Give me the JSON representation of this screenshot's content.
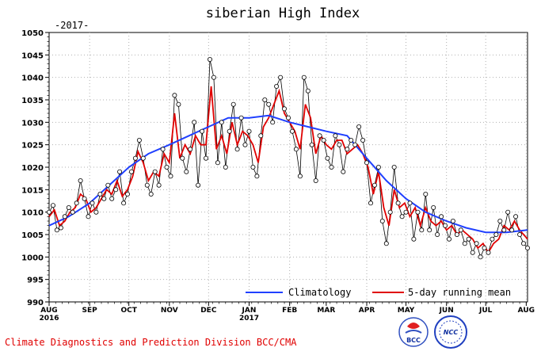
{
  "chart_data": {
    "type": "line",
    "title": "siberian High Index",
    "subtitle": "-2017-",
    "xlabel": "",
    "ylabel": "",
    "ylim": [
      990,
      1050
    ],
    "yticks": [
      990,
      995,
      1000,
      1005,
      1010,
      1015,
      1020,
      1025,
      1030,
      1035,
      1040,
      1045,
      1050
    ],
    "x_range_days": [
      0,
      366
    ],
    "month_ticks": [
      {
        "label": "AUG",
        "year": "2016",
        "day": 0
      },
      {
        "label": "SEP",
        "year": "",
        "day": 31
      },
      {
        "label": "OCT",
        "year": "",
        "day": 61
      },
      {
        "label": "NOV",
        "year": "",
        "day": 92
      },
      {
        "label": "DEC",
        "year": "",
        "day": 122
      },
      {
        "label": "JAN",
        "year": "2017",
        "day": 153
      },
      {
        "label": "FEB",
        "year": "",
        "day": 184
      },
      {
        "label": "MAR",
        "year": "",
        "day": 212
      },
      {
        "label": "APR",
        "year": "",
        "day": 243
      },
      {
        "label": "MAY",
        "year": "",
        "day": 273
      },
      {
        "label": "JUN",
        "year": "",
        "day": 304
      },
      {
        "label": "JUL",
        "year": "",
        "day": 334
      },
      {
        "label": "AUG",
        "year": "",
        "day": 365
      }
    ],
    "grid": true,
    "legend_position": "bottom-right",
    "series": [
      {
        "name": "Climatology",
        "color": "#2040ff",
        "style": "line",
        "points": [
          [
            0,
            1007
          ],
          [
            15,
            1009
          ],
          [
            31,
            1012
          ],
          [
            46,
            1016
          ],
          [
            61,
            1020
          ],
          [
            76,
            1023
          ],
          [
            92,
            1025
          ],
          [
            107,
            1027
          ],
          [
            122,
            1029
          ],
          [
            137,
            1031
          ],
          [
            153,
            1031
          ],
          [
            168,
            1031.5
          ],
          [
            184,
            1030
          ],
          [
            198,
            1029
          ],
          [
            212,
            1028
          ],
          [
            228,
            1027
          ],
          [
            243,
            1022
          ],
          [
            258,
            1017
          ],
          [
            273,
            1013
          ],
          [
            288,
            1010
          ],
          [
            304,
            1008
          ],
          [
            319,
            1006.5
          ],
          [
            334,
            1005.5
          ],
          [
            350,
            1005.5
          ],
          [
            366,
            1006
          ]
        ]
      },
      {
        "name": "5-day running mean",
        "color": "#e00000",
        "style": "line",
        "points": [
          [
            0,
            1009
          ],
          [
            4,
            1010.5
          ],
          [
            8,
            1007
          ],
          [
            12,
            1008
          ],
          [
            16,
            1010
          ],
          [
            20,
            1011
          ],
          [
            24,
            1014
          ],
          [
            28,
            1013
          ],
          [
            32,
            1010
          ],
          [
            36,
            1011
          ],
          [
            40,
            1013
          ],
          [
            44,
            1015
          ],
          [
            48,
            1014
          ],
          [
            52,
            1017
          ],
          [
            56,
            1013.5
          ],
          [
            60,
            1015
          ],
          [
            64,
            1018
          ],
          [
            68,
            1023.5
          ],
          [
            72,
            1021
          ],
          [
            76,
            1017
          ],
          [
            80,
            1019
          ],
          [
            84,
            1018
          ],
          [
            88,
            1023
          ],
          [
            92,
            1021
          ],
          [
            96,
            1032
          ],
          [
            100,
            1022
          ],
          [
            104,
            1025
          ],
          [
            108,
            1023
          ],
          [
            112,
            1027
          ],
          [
            116,
            1025
          ],
          [
            120,
            1025
          ],
          [
            124,
            1038
          ],
          [
            128,
            1024
          ],
          [
            132,
            1027
          ],
          [
            136,
            1023
          ],
          [
            140,
            1030
          ],
          [
            144,
            1025
          ],
          [
            148,
            1028
          ],
          [
            152,
            1027
          ],
          [
            156,
            1025
          ],
          [
            160,
            1021
          ],
          [
            164,
            1029
          ],
          [
            168,
            1031
          ],
          [
            172,
            1034
          ],
          [
            176,
            1037
          ],
          [
            180,
            1032
          ],
          [
            184,
            1030
          ],
          [
            188,
            1028
          ],
          [
            192,
            1024
          ],
          [
            196,
            1034
          ],
          [
            200,
            1031
          ],
          [
            204,
            1023
          ],
          [
            208,
            1027
          ],
          [
            212,
            1025
          ],
          [
            216,
            1024
          ],
          [
            220,
            1026
          ],
          [
            224,
            1026
          ],
          [
            228,
            1023
          ],
          [
            232,
            1024
          ],
          [
            236,
            1025
          ],
          [
            240,
            1023
          ],
          [
            244,
            1020
          ],
          [
            248,
            1014
          ],
          [
            252,
            1019
          ],
          [
            256,
            1011
          ],
          [
            260,
            1007
          ],
          [
            264,
            1015
          ],
          [
            268,
            1011
          ],
          [
            272,
            1012
          ],
          [
            276,
            1009
          ],
          [
            280,
            1011
          ],
          [
            284,
            1007
          ],
          [
            288,
            1011
          ],
          [
            292,
            1008
          ],
          [
            296,
            1007
          ],
          [
            300,
            1008
          ],
          [
            304,
            1006
          ],
          [
            308,
            1007
          ],
          [
            312,
            1005
          ],
          [
            316,
            1006
          ],
          [
            320,
            1005
          ],
          [
            324,
            1004
          ],
          [
            328,
            1002
          ],
          [
            332,
            1003
          ],
          [
            336,
            1001
          ],
          [
            340,
            1003
          ],
          [
            344,
            1004
          ],
          [
            348,
            1007
          ],
          [
            352,
            1006
          ],
          [
            356,
            1008
          ],
          [
            360,
            1006
          ],
          [
            366,
            1004
          ]
        ]
      },
      {
        "name": "",
        "color": "#000000",
        "style": "markers",
        "points": [
          [
            0,
            1010
          ],
          [
            3,
            1011.5
          ],
          [
            6,
            1006
          ],
          [
            9,
            1006.5
          ],
          [
            12,
            1009
          ],
          [
            15,
            1011
          ],
          [
            18,
            1010
          ],
          [
            21,
            1012
          ],
          [
            24,
            1017
          ],
          [
            27,
            1013
          ],
          [
            30,
            1009
          ],
          [
            33,
            1012
          ],
          [
            36,
            1010
          ],
          [
            39,
            1014
          ],
          [
            42,
            1013
          ],
          [
            45,
            1016
          ],
          [
            48,
            1013
          ],
          [
            51,
            1015
          ],
          [
            54,
            1019
          ],
          [
            57,
            1012
          ],
          [
            60,
            1014
          ],
          [
            63,
            1019
          ],
          [
            66,
            1022
          ],
          [
            69,
            1026
          ],
          [
            72,
            1022
          ],
          [
            75,
            1016
          ],
          [
            78,
            1014
          ],
          [
            81,
            1019
          ],
          [
            84,
            1016
          ],
          [
            87,
            1024
          ],
          [
            90,
            1020
          ],
          [
            93,
            1018
          ],
          [
            96,
            1036
          ],
          [
            99,
            1034
          ],
          [
            102,
            1022
          ],
          [
            105,
            1019
          ],
          [
            108,
            1024
          ],
          [
            111,
            1030
          ],
          [
            114,
            1016
          ],
          [
            117,
            1028
          ],
          [
            120,
            1022
          ],
          [
            123,
            1044
          ],
          [
            126,
            1040
          ],
          [
            129,
            1021
          ],
          [
            132,
            1030
          ],
          [
            135,
            1020
          ],
          [
            138,
            1028
          ],
          [
            141,
            1034
          ],
          [
            144,
            1024
          ],
          [
            147,
            1031
          ],
          [
            150,
            1025
          ],
          [
            153,
            1028
          ],
          [
            156,
            1020
          ],
          [
            159,
            1018
          ],
          [
            162,
            1027
          ],
          [
            165,
            1035
          ],
          [
            168,
            1034
          ],
          [
            171,
            1030
          ],
          [
            174,
            1038
          ],
          [
            177,
            1040
          ],
          [
            180,
            1033
          ],
          [
            183,
            1031
          ],
          [
            186,
            1028
          ],
          [
            189,
            1024
          ],
          [
            192,
            1018
          ],
          [
            195,
            1040
          ],
          [
            198,
            1037
          ],
          [
            201,
            1025
          ],
          [
            204,
            1017
          ],
          [
            207,
            1027
          ],
          [
            210,
            1026
          ],
          [
            213,
            1022
          ],
          [
            216,
            1020
          ],
          [
            219,
            1027
          ],
          [
            222,
            1025
          ],
          [
            225,
            1019
          ],
          [
            228,
            1024
          ],
          [
            231,
            1026
          ],
          [
            234,
            1025
          ],
          [
            237,
            1029
          ],
          [
            240,
            1026
          ],
          [
            243,
            1021
          ],
          [
            246,
            1012
          ],
          [
            249,
            1016
          ],
          [
            252,
            1020
          ],
          [
            255,
            1008
          ],
          [
            258,
            1003
          ],
          [
            261,
            1010
          ],
          [
            264,
            1020
          ],
          [
            267,
            1012
          ],
          [
            270,
            1009
          ],
          [
            273,
            1010
          ],
          [
            276,
            1012
          ],
          [
            279,
            1004
          ],
          [
            282,
            1010
          ],
          [
            285,
            1006
          ],
          [
            288,
            1014
          ],
          [
            291,
            1006
          ],
          [
            294,
            1011
          ],
          [
            297,
            1005
          ],
          [
            300,
            1009
          ],
          [
            303,
            1007
          ],
          [
            306,
            1004
          ],
          [
            309,
            1008
          ],
          [
            312,
            1005
          ],
          [
            315,
            1006
          ],
          [
            318,
            1003
          ],
          [
            321,
            1004
          ],
          [
            324,
            1001
          ],
          [
            327,
            1003
          ],
          [
            330,
            1000
          ],
          [
            333,
            1002
          ],
          [
            336,
            1001
          ],
          [
            339,
            1004
          ],
          [
            342,
            1005
          ],
          [
            345,
            1008
          ],
          [
            348,
            1006
          ],
          [
            351,
            1010
          ],
          [
            354,
            1006
          ],
          [
            357,
            1009
          ],
          [
            360,
            1005
          ],
          [
            363,
            1003
          ],
          [
            366,
            1002
          ]
        ]
      }
    ]
  },
  "footer": {
    "division": "Climate Diagnostics and Prediction Division  BCC/CMA",
    "logo1_text": "BCC",
    "logo2_text": "NCC"
  }
}
